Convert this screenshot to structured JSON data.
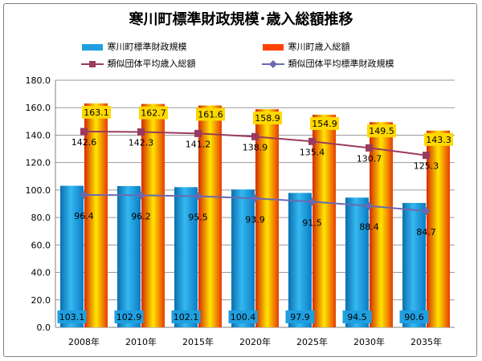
{
  "chart_data": {
    "type": "bar",
    "title": "寒川町標準財政規模･歳入総額推移",
    "categories": [
      "2008年",
      "2010年",
      "2015年",
      "2020年",
      "2025年",
      "2030年",
      "2035年"
    ],
    "ylim": [
      0,
      180
    ],
    "yticks": [
      "0.0",
      "20.0",
      "40.0",
      "60.0",
      "80.0",
      "100.0",
      "120.0",
      "140.0",
      "160.0",
      "180.0"
    ],
    "grid": true,
    "legend_position": "top",
    "series": [
      {
        "name": "寒川町標準財政規模",
        "kind": "bar",
        "color": "#1f9fe0",
        "values": [
          103.1,
          102.9,
          102.1,
          100.4,
          97.9,
          94.5,
          90.6
        ],
        "labels": [
          "103.1",
          "102.9",
          "102.1",
          "100.4",
          "97.9",
          "94.5",
          "90.6"
        ]
      },
      {
        "name": "寒川町歳入総額",
        "kind": "bar",
        "color": "#ff4400",
        "values": [
          163.1,
          162.7,
          161.6,
          158.9,
          154.9,
          149.5,
          143.3
        ],
        "labels": [
          "163.1",
          "162.7",
          "161.6",
          "158.9",
          "154.9",
          "149.5",
          "143.3"
        ]
      },
      {
        "name": "類似団体平均歳入総額",
        "kind": "line",
        "color": "#9a3b5e",
        "marker": "square",
        "values": [
          142.6,
          142.3,
          141.2,
          138.9,
          135.4,
          130.7,
          125.3
        ],
        "labels": [
          "142.6",
          "142.3",
          "141.2",
          "138.9",
          "135.4",
          "130.7",
          "125.3"
        ]
      },
      {
        "name": "類似団体平均標準財政規模",
        "kind": "line",
        "color": "#6a6ab0",
        "marker": "diamond",
        "values": [
          96.4,
          96.2,
          95.5,
          93.9,
          91.5,
          88.4,
          84.7
        ],
        "labels": [
          "96.4",
          "96.2",
          "95.5",
          "93.9",
          "91.5",
          "88.4",
          "84.7"
        ]
      }
    ]
  }
}
